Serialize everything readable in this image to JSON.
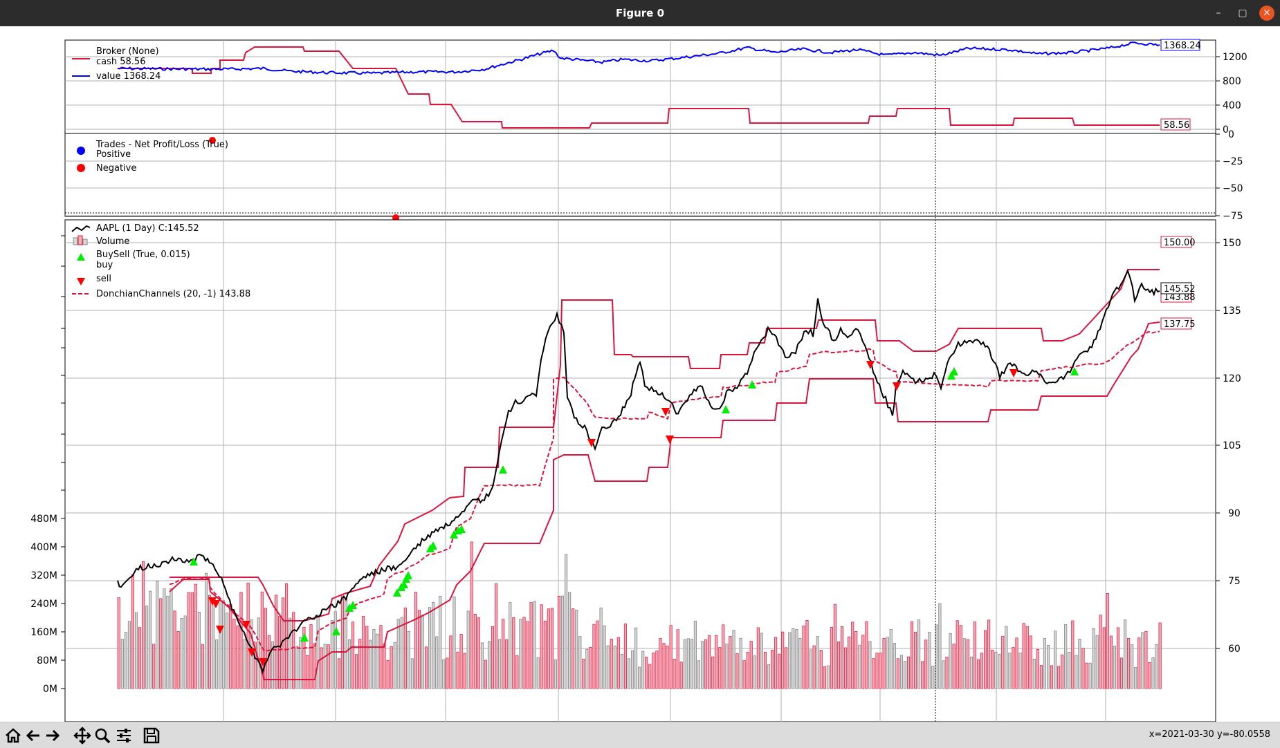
{
  "window": {
    "title": "Figure 0",
    "min_label": "–",
    "max_label": "▢",
    "close_label": "✕"
  },
  "status": {
    "coords": "x=2021-03-30 y=-80.0558"
  },
  "toolbar": {
    "icons": [
      "home-icon",
      "back-icon",
      "forward-icon",
      "pan-icon",
      "zoom-icon",
      "configure-subplots-icon",
      "save-icon"
    ]
  },
  "broker": {
    "legend_title": "Broker (None)",
    "cash_label": "cash 58.56",
    "value_label": "value 1368.24",
    "value_tag": "1368.24",
    "cash_tag": "58.56",
    "yticks": [
      "1200",
      "800",
      "400",
      "0"
    ],
    "cash_color": "#dc143c",
    "value_color": "#0000ff"
  },
  "trades": {
    "legend_title": "Trades - Net Profit/Loss (True)",
    "positive_label": "Positive",
    "negative_label": "Negative",
    "yticks": [
      "0",
      "−25",
      "−50",
      "−75"
    ],
    "positive_color": "#0000ff",
    "negative_color": "#ff0000"
  },
  "price": {
    "legend_data": "AAPL (1 Day) C:145.52",
    "legend_volume": "Volume",
    "legend_buysell": "BuySell (True, 0.015)",
    "legend_buy": "buy",
    "legend_sell": "sell",
    "legend_donchian": "DonchianChannels (20, -1) 143.88",
    "tag_top": "150.00",
    "tag_close": "145.52",
    "tag_mid": "143.88",
    "tag_bottom": "137.75",
    "yticks": [
      "150",
      "135",
      "120",
      "105",
      "90",
      "75",
      "60"
    ],
    "volume_ticks": [
      "480M",
      "400M",
      "320M",
      "240M",
      "160M",
      "80M",
      "0M"
    ]
  }
}
